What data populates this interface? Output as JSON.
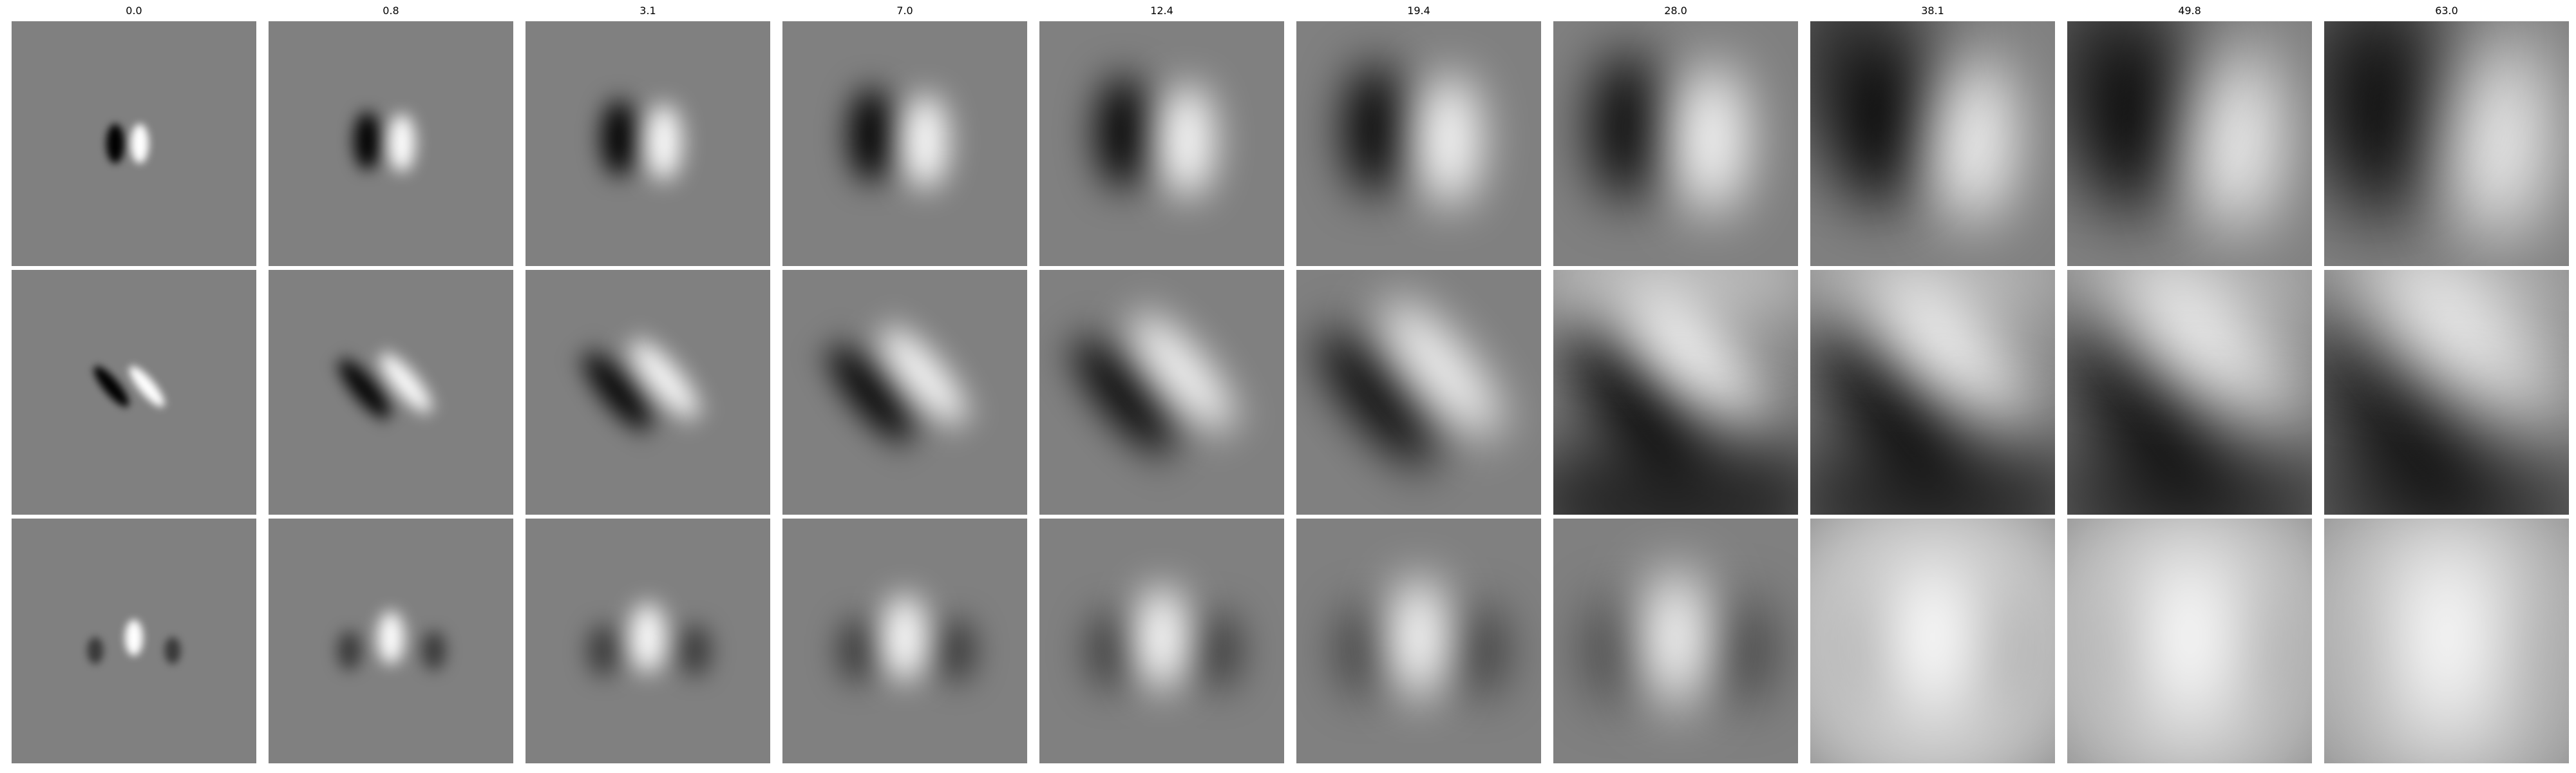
{
  "columns": [
    {
      "label": "0.0"
    },
    {
      "label": "0.8"
    },
    {
      "label": "3.1"
    },
    {
      "label": "7.0"
    },
    {
      "label": "12.4"
    },
    {
      "label": "19.4"
    },
    {
      "label": "28.0"
    },
    {
      "label": "38.1"
    },
    {
      "label": "49.8"
    },
    {
      "label": "63.0"
    }
  ],
  "grid": {
    "rows": 3,
    "cols": 10
  },
  "colormap": "gray",
  "background_color": "#808080"
}
